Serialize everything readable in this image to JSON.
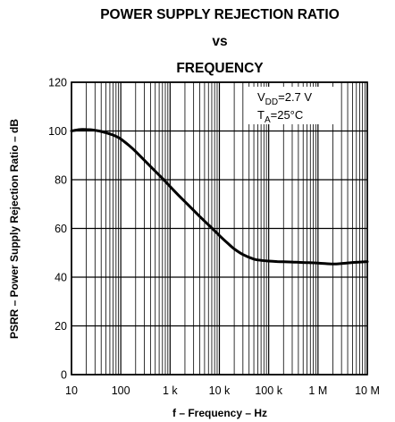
{
  "chart_data": {
    "type": "line",
    "title_lines": [
      "POWER SUPPLY REJECTION RATIO",
      "vs",
      "FREQUENCY"
    ],
    "xlabel": "f – Frequency – Hz",
    "ylabel": "PSRR  – Power Supply Rejection Ratio – dB",
    "x_scale": "log",
    "xlim": [
      10,
      10000000
    ],
    "ylim": [
      0,
      120
    ],
    "grid": true,
    "x_ticks": [
      {
        "value": 10,
        "label": "10"
      },
      {
        "value": 100,
        "label": "100"
      },
      {
        "value": 1000,
        "label": "1 k"
      },
      {
        "value": 10000,
        "label": "10 k"
      },
      {
        "value": 100000,
        "label": "100 k"
      },
      {
        "value": 1000000,
        "label": "1 M"
      },
      {
        "value": 10000000,
        "label": "10 M"
      }
    ],
    "y_ticks": [
      {
        "value": 0,
        "label": "0"
      },
      {
        "value": 20,
        "label": "20"
      },
      {
        "value": 40,
        "label": "40"
      },
      {
        "value": 60,
        "label": "60"
      },
      {
        "value": 80,
        "label": "80"
      },
      {
        "value": 100,
        "label": "100"
      },
      {
        "value": 120,
        "label": "120"
      }
    ],
    "annotations": {
      "vdd": {
        "main": "V",
        "sub": "DD",
        "rest": "=2.7 V"
      },
      "ta": {
        "main": "T",
        "sub": "A",
        "rest": "=25°C"
      }
    },
    "series": [
      {
        "x": [
          10,
          15,
          20,
          30,
          40,
          60,
          80,
          100,
          150,
          200,
          300,
          500,
          700,
          1000,
          1500,
          2000,
          3000,
          5000,
          7000,
          10000,
          15000,
          20000,
          30000,
          50000,
          70000,
          100000,
          150000,
          200000,
          300000,
          500000,
          1000000,
          2000000,
          3000000,
          5000000,
          10000000
        ],
        "y": [
          100,
          100.6,
          100.6,
          100.3,
          99.8,
          98.8,
          97.8,
          96.7,
          93.9,
          91.6,
          88.0,
          83.5,
          80.5,
          77.2,
          73.5,
          71.0,
          67.4,
          63.0,
          60.2,
          57.1,
          53.8,
          51.6,
          49.3,
          47.4,
          46.9,
          46.6,
          46.4,
          46.3,
          46.2,
          46.0,
          45.8,
          45.4,
          45.6,
          46.0,
          46.4
        ]
      }
    ]
  }
}
